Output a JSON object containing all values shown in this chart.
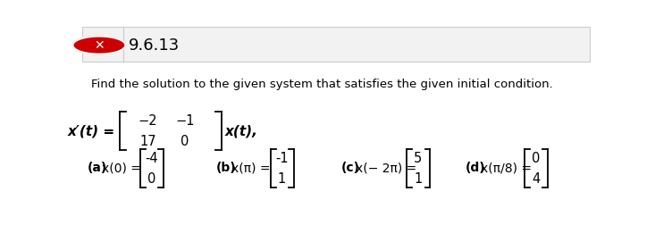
{
  "title_number": "9.6.13",
  "problem_text": "Find the solution to the given system that satisfies the given initial condition.",
  "matrix": [
    [
      -2,
      -1
    ],
    [
      17,
      0
    ]
  ],
  "parts": [
    {
      "label": "(a)",
      "condition": "x(0) =",
      "vector": [
        -4,
        0
      ]
    },
    {
      "label": "(b)",
      "condition": "x(π) =",
      "vector": [
        -1,
        1
      ]
    },
    {
      "label": "(c)",
      "condition": "x(− 2π) =",
      "vector": [
        5,
        1
      ]
    },
    {
      "label": "(d)",
      "condition": "x(π/8) =",
      "vector": [
        0,
        4
      ]
    }
  ],
  "bg_color": "#ffffff",
  "text_color": "#000000",
  "header_bg": "#f2f2f2",
  "header_border": "#cccccc",
  "red_x_color": "#cc0000",
  "font_size_title": 13,
  "font_size_body": 9.5,
  "font_size_math": 10.5
}
